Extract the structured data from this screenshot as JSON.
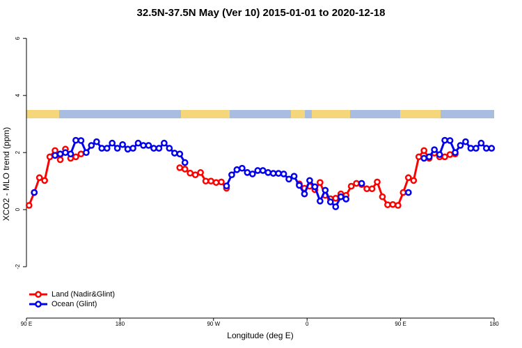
{
  "chart_data": {
    "type": "line",
    "title": "32.5N-37.5N May (Ver 10)   2015-01-01 to 2020-12-18",
    "x_label": "Longitude (deg E)",
    "y_label": "XCO2 - MLO trend (ppm)",
    "x": [
      92.5,
      97.5,
      102.5,
      107.5,
      112.5,
      117.5,
      122.5,
      127.5,
      132.5,
      137.5,
      142.5,
      147.5,
      152.5,
      157.5,
      162.5,
      167.5,
      172.5,
      177.5,
      182.5,
      187.5,
      192.5,
      197.5,
      202.5,
      207.5,
      212.5,
      217.5,
      222.5,
      227.5,
      232.5,
      237.5,
      242.5,
      247.5,
      252.5,
      257.5,
      262.5,
      267.5,
      272.5,
      277.5,
      282.5,
      287.5,
      292.5,
      297.5,
      302.5,
      307.5,
      312.5,
      317.5,
      322.5,
      327.5,
      332.5,
      337.5,
      342.5,
      347.5,
      352.5,
      357.5,
      362.5,
      367.5,
      372.5,
      377.5,
      382.5,
      387.5,
      392.5,
      397.5,
      402.5,
      407.5,
      412.5,
      417.5,
      422.5,
      427.5,
      432.5,
      437.5,
      442.5,
      447.5,
      452.5,
      457.5,
      462.5,
      467.5,
      472.5,
      477.5,
      482.5,
      487.5,
      492.5,
      497.5,
      502.5,
      507.5,
      512.5,
      517.5,
      522.5,
      527.5,
      532.5,
      537.5
    ],
    "series": [
      {
        "name": "Land (Nadir&Glint)",
        "color": "#ff0000",
        "values": [
          0.15,
          0.6,
          1.12,
          1.02,
          1.85,
          2.07,
          1.75,
          2.12,
          1.8,
          1.85,
          1.95,
          null,
          null,
          null,
          null,
          null,
          null,
          null,
          null,
          null,
          null,
          null,
          null,
          null,
          null,
          null,
          null,
          null,
          null,
          1.47,
          1.42,
          1.28,
          1.22,
          1.3,
          1.0,
          1.0,
          0.95,
          0.97,
          0.75,
          null,
          null,
          null,
          null,
          null,
          null,
          null,
          null,
          null,
          null,
          null,
          null,
          null,
          0.9,
          0.75,
          0.82,
          0.7,
          0.95,
          0.5,
          0.38,
          0.4,
          0.55,
          0.5,
          0.82,
          0.92,
          0.88,
          0.73,
          0.73,
          0.97,
          0.45,
          0.17,
          0.18,
          0.15,
          0.6,
          1.12,
          1.02,
          1.85,
          2.07,
          1.8,
          1.98,
          1.85,
          1.85,
          1.93,
          1.95,
          null,
          null,
          null,
          null,
          null,
          null,
          null
        ]
      },
      {
        "name": "Ocean (Glint)",
        "color": "#0000ee",
        "values": [
          null,
          0.6,
          null,
          null,
          null,
          1.9,
          1.95,
          2.0,
          1.95,
          2.43,
          2.42,
          2.0,
          2.25,
          2.38,
          2.15,
          2.15,
          2.33,
          2.15,
          2.28,
          2.12,
          2.15,
          2.33,
          2.25,
          2.25,
          2.15,
          2.15,
          2.33,
          2.15,
          1.98,
          1.95,
          1.65,
          null,
          null,
          null,
          null,
          null,
          null,
          null,
          0.83,
          1.22,
          1.4,
          1.45,
          1.3,
          1.25,
          1.37,
          1.37,
          1.3,
          1.27,
          1.27,
          1.25,
          1.07,
          1.17,
          0.85,
          0.55,
          1.02,
          0.8,
          0.3,
          0.68,
          0.27,
          0.1,
          0.45,
          0.37,
          null,
          null,
          0.92,
          null,
          null,
          null,
          null,
          null,
          null,
          null,
          null,
          0.6,
          null,
          null,
          1.8,
          1.85,
          2.1,
          1.93,
          2.43,
          2.42,
          2.0,
          2.25,
          2.38,
          2.15,
          2.15,
          2.33,
          2.15,
          2.15
        ]
      }
    ],
    "xlim": [
      90,
      540
    ],
    "xticks": [
      {
        "value": 90,
        "label": "90 E"
      },
      180,
      {
        "value": 270,
        "label": "90 W"
      },
      {
        "value": 360,
        "label": "0"
      },
      {
        "value": 450,
        "label": "90 E"
      },
      {
        "value": 540,
        "label": "180"
      }
    ],
    "ylim": [
      -3.8,
      6.37
    ],
    "yticks": [
      -2,
      0,
      2,
      4,
      6
    ],
    "legend": "bottom-left"
  }
}
